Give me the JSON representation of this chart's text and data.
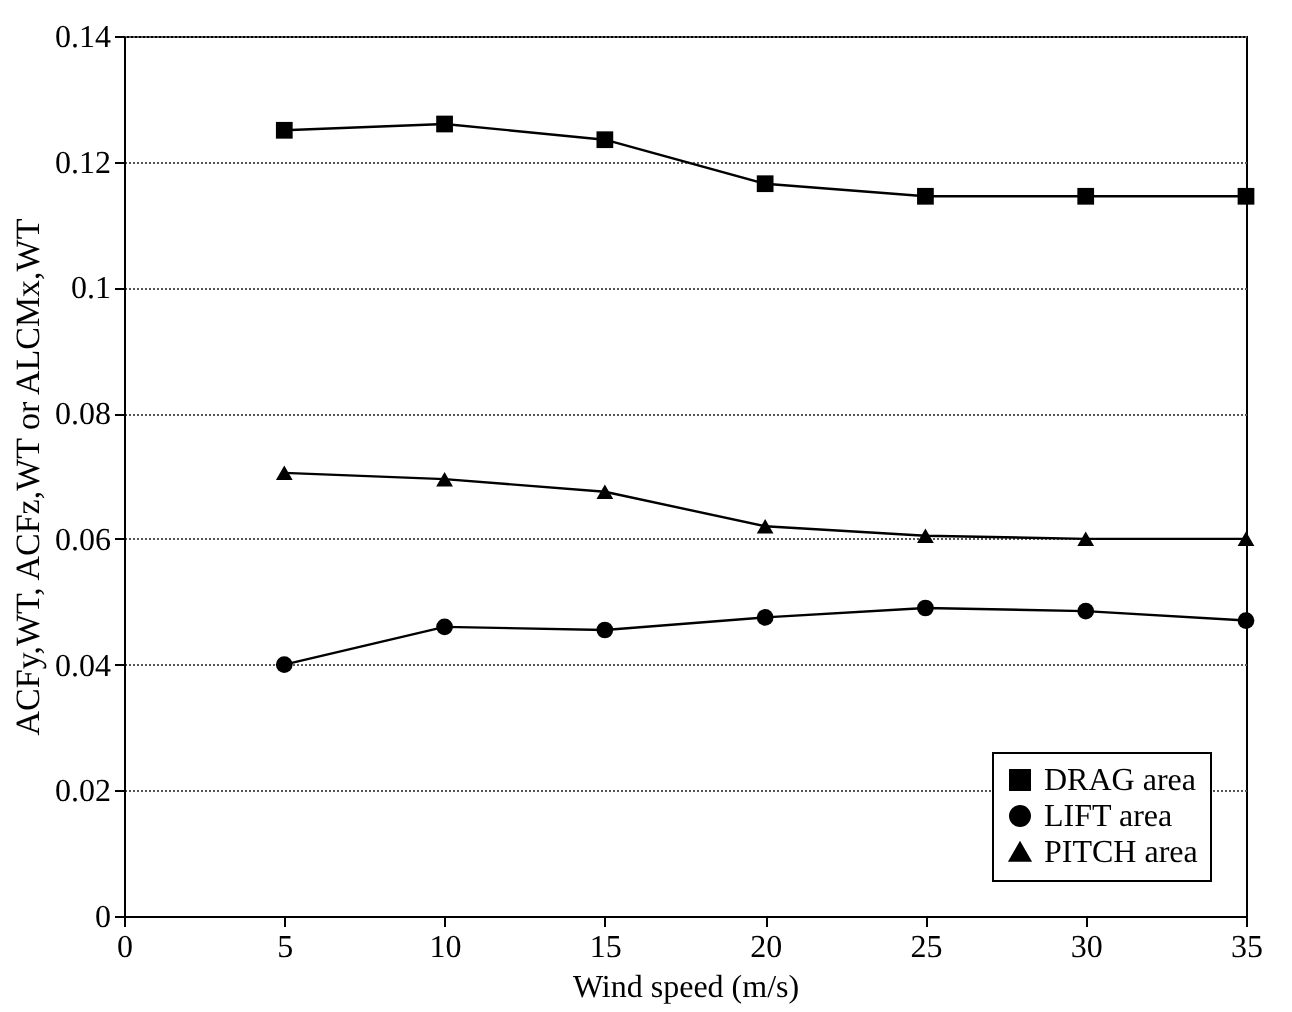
{
  "chart_data": {
    "type": "line",
    "xlabel": "Wind speed (m/s)",
    "ylabel": "ACFy,WT, ACFz,WT or ALCMx,WT",
    "x": [
      5,
      10,
      15,
      20,
      25,
      30,
      35
    ],
    "series": [
      {
        "name": "DRAG area",
        "color": "#000000",
        "marker": "square",
        "values": [
          0.125,
          0.126,
          0.1235,
          0.1165,
          0.1145,
          0.1145,
          0.1145
        ]
      },
      {
        "name": "LIFT area",
        "color": "#000000",
        "marker": "circle",
        "values": [
          0.04,
          0.046,
          0.0455,
          0.0475,
          0.049,
          0.0485,
          0.047
        ]
      },
      {
        "name": "PITCH area",
        "color": "#000000",
        "marker": "triangle",
        "values": [
          0.0705,
          0.0695,
          0.0675,
          0.062,
          0.0605,
          0.06,
          0.06
        ]
      }
    ],
    "xlim": [
      0,
      35
    ],
    "xticks": [
      0,
      5,
      10,
      15,
      20,
      25,
      30,
      35
    ],
    "ylim": [
      0,
      0.14
    ],
    "yticks": [
      0,
      0.02,
      0.04,
      0.06,
      0.08,
      0.1,
      0.12,
      0.14
    ],
    "grid": "y",
    "legend": "bottom right",
    "line_style": "solid"
  }
}
